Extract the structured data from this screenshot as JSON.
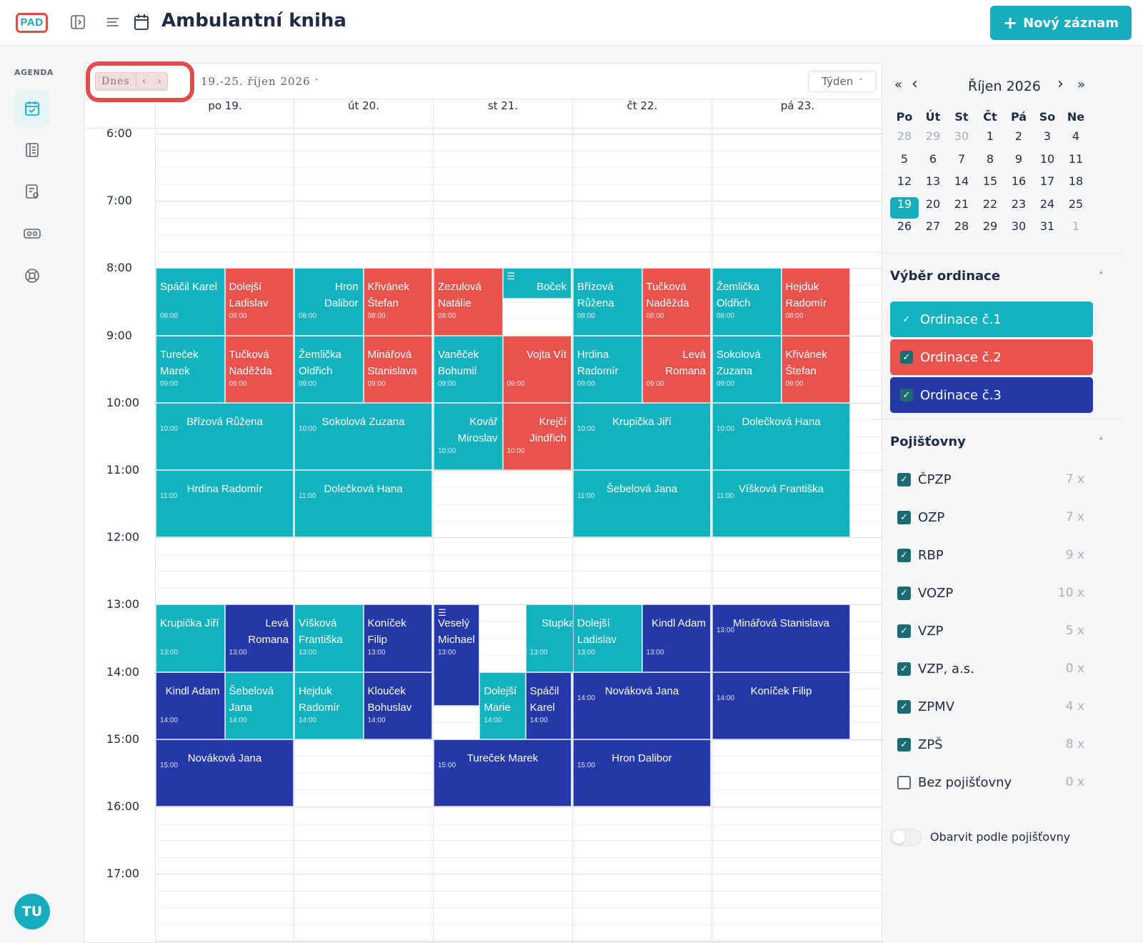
{
  "app": {
    "logo": "PAD",
    "title": "Ambulantní kniha",
    "new_button": "Nový záznam"
  },
  "sidebar": {
    "section": "AGENDA",
    "user_initials": "TU",
    "items": [
      {
        "icon": "calendar-check-icon",
        "active": true
      },
      {
        "icon": "book-icon",
        "active": false
      },
      {
        "icon": "clipboard-icon",
        "active": false
      },
      {
        "icon": "id-card-icon",
        "active": false
      },
      {
        "icon": "lifebuoy-icon",
        "active": false
      }
    ]
  },
  "calendar": {
    "today": "Dnes",
    "prev": "‹",
    "next": "›",
    "range": "19.-25. říjen 2026",
    "view": "Týden",
    "days": [
      "po 19.",
      "út 20.",
      "st 21.",
      "čt 22.",
      "pá 23."
    ],
    "hours": [
      "6:00",
      "7:00",
      "8:00",
      "9:00",
      "10:00",
      "11:00",
      "12:00",
      "13:00",
      "14:00",
      "15:00",
      "16:00",
      "17:00"
    ],
    "events": [
      {
        "day": 0,
        "sub": 0,
        "of": 2,
        "start": 8,
        "end": 9,
        "ord": 1,
        "name": "Spáčil Karel",
        "time": "08:00",
        "align": "l"
      },
      {
        "day": 0,
        "sub": 1,
        "of": 2,
        "start": 8,
        "end": 9,
        "ord": 2,
        "name": "Dolejší Ladislav",
        "time": "08:00",
        "align": "l"
      },
      {
        "day": 0,
        "sub": 0,
        "of": 2,
        "start": 9,
        "end": 10,
        "ord": 1,
        "name": "Tureček Marek",
        "time": "09:00",
        "align": "l"
      },
      {
        "day": 0,
        "sub": 1,
        "of": 2,
        "start": 9,
        "end": 10,
        "ord": 2,
        "name": "Tučková Naděžda",
        "time": "09:00",
        "align": "l"
      },
      {
        "day": 0,
        "sub": 0,
        "of": 1,
        "start": 10,
        "end": 11,
        "ord": 1,
        "name": "Břízová Růžena",
        "time": "10:00",
        "align": "c"
      },
      {
        "day": 0,
        "sub": 0,
        "of": 1,
        "start": 11,
        "end": 12,
        "ord": 1,
        "name": "Hrdina Radomír",
        "time": "11:00",
        "align": "c"
      },
      {
        "day": 0,
        "sub": 0,
        "of": 2,
        "start": 13,
        "end": 14,
        "ord": 1,
        "name": "Krupička Jiří",
        "time": "13:00",
        "align": "l"
      },
      {
        "day": 0,
        "sub": 1,
        "of": 2,
        "start": 13,
        "end": 14,
        "ord": 3,
        "name": "Levá Romana",
        "time": "13:00",
        "align": "r"
      },
      {
        "day": 0,
        "sub": 0,
        "of": 2,
        "start": 14,
        "end": 15,
        "ord": 3,
        "name": "Kindl Adam",
        "time": "14:00",
        "align": "r"
      },
      {
        "day": 0,
        "sub": 1,
        "of": 2,
        "start": 14,
        "end": 15,
        "ord": 1,
        "name": "Šebelová Jana",
        "time": "14:00",
        "align": "l"
      },
      {
        "day": 0,
        "sub": 0,
        "of": 1,
        "start": 15,
        "end": 16,
        "ord": 3,
        "name": "Nováková Jana",
        "time": "15:00",
        "align": "c"
      },
      {
        "day": 1,
        "sub": 0,
        "of": 2,
        "start": 8,
        "end": 9,
        "ord": 1,
        "name": "Hron Dalibor",
        "time": "08:00",
        "align": "r"
      },
      {
        "day": 1,
        "sub": 1,
        "of": 2,
        "start": 8,
        "end": 9,
        "ord": 2,
        "name": "Křivánek Štefan",
        "time": "08:00",
        "align": "l"
      },
      {
        "day": 1,
        "sub": 0,
        "of": 2,
        "start": 9,
        "end": 10,
        "ord": 1,
        "name": "Žemlička Oldřich",
        "time": "09:00",
        "align": "l"
      },
      {
        "day": 1,
        "sub": 1,
        "of": 2,
        "start": 9,
        "end": 10,
        "ord": 2,
        "name": "Minářová Stanislava",
        "time": "09:00",
        "align": "l"
      },
      {
        "day": 1,
        "sub": 0,
        "of": 1,
        "start": 10,
        "end": 11,
        "ord": 1,
        "name": "Sokolová Zuzana",
        "time": "10:00",
        "align": "c"
      },
      {
        "day": 1,
        "sub": 0,
        "of": 1,
        "start": 11,
        "end": 12,
        "ord": 1,
        "name": "Dolečková Hana",
        "time": "11:00",
        "align": "c"
      },
      {
        "day": 1,
        "sub": 0,
        "of": 2,
        "start": 13,
        "end": 14,
        "ord": 1,
        "name": "Víšková Františka",
        "time": "13:00",
        "align": "l"
      },
      {
        "day": 1,
        "sub": 1,
        "of": 2,
        "start": 13,
        "end": 14,
        "ord": 3,
        "name": "Koníček Filip",
        "time": "13:00",
        "align": "l"
      },
      {
        "day": 1,
        "sub": 0,
        "of": 2,
        "start": 14,
        "end": 15,
        "ord": 1,
        "name": "Hejduk Radomír",
        "time": "14:00",
        "align": "l"
      },
      {
        "day": 1,
        "sub": 1,
        "of": 2,
        "start": 14,
        "end": 15,
        "ord": 3,
        "name": "Klouček Bohuslav",
        "time": "14:00",
        "align": "l"
      },
      {
        "day": 2,
        "sub": 0,
        "of": 2,
        "start": 8,
        "end": 9,
        "ord": 2,
        "name": "Zezulová Natálie",
        "time": "08:00",
        "align": "l"
      },
      {
        "day": 2,
        "sub": 1,
        "of": 2,
        "start": 8,
        "end": 8.45,
        "ord": 1,
        "name": "Boček Rudolf",
        "time": "",
        "align": "r",
        "icon": true
      },
      {
        "day": 2,
        "sub": 0,
        "of": 2,
        "start": 9,
        "end": 10,
        "ord": 1,
        "name": "Vaněček Bohumil",
        "time": "09:00",
        "align": "l"
      },
      {
        "day": 2,
        "sub": 1,
        "of": 2,
        "start": 9,
        "end": 10,
        "ord": 2,
        "name": "Vojta Vít",
        "time": "09:00",
        "align": "r"
      },
      {
        "day": 2,
        "sub": 0,
        "of": 2,
        "start": 10,
        "end": 11,
        "ord": 1,
        "name": "Kovář Miroslav",
        "time": "10:00",
        "align": "r"
      },
      {
        "day": 2,
        "sub": 1,
        "of": 2,
        "start": 10,
        "end": 11,
        "ord": 2,
        "name": "Krejčí Jindřich",
        "time": "10:00",
        "align": "r"
      },
      {
        "day": 2,
        "sub": 0,
        "of": 3,
        "start": 13,
        "end": 14.5,
        "ord": 3,
        "name": "Veselý Michael",
        "time": "13:00",
        "align": "l",
        "icon": true
      },
      {
        "day": 2,
        "sub": 1,
        "of": 1.5,
        "start": 13,
        "end": 14,
        "ord": 1,
        "name": "Stupka Roman",
        "time": "13:00",
        "align": "r"
      },
      {
        "day": 2,
        "sub": 1,
        "of": 3,
        "start": 14,
        "end": 15,
        "ord": 1,
        "name": "Dolejší Marie",
        "time": "14:00",
        "align": "l"
      },
      {
        "day": 2,
        "sub": 2,
        "of": 3,
        "start": 14,
        "end": 15,
        "ord": 3,
        "name": "Spáčil Karel",
        "time": "14:00",
        "align": "l"
      },
      {
        "day": 2,
        "sub": 0,
        "of": 1,
        "start": 15,
        "end": 16,
        "ord": 3,
        "name": "Tureček Marek",
        "time": "15:00",
        "align": "c"
      },
      {
        "day": 3,
        "sub": 0,
        "of": 2,
        "start": 8,
        "end": 9,
        "ord": 1,
        "name": "Břízová Růžena",
        "time": "08:00",
        "align": "l"
      },
      {
        "day": 3,
        "sub": 1,
        "of": 2,
        "start": 8,
        "end": 9,
        "ord": 2,
        "name": "Tučková Naděžda",
        "time": "08:00",
        "align": "l"
      },
      {
        "day": 3,
        "sub": 0,
        "of": 2,
        "start": 9,
        "end": 10,
        "ord": 1,
        "name": "Hrdina Radomír",
        "time": "09:00",
        "align": "l"
      },
      {
        "day": 3,
        "sub": 1,
        "of": 2,
        "start": 9,
        "end": 10,
        "ord": 2,
        "name": "Levá Romana",
        "time": "09:00",
        "align": "r"
      },
      {
        "day": 3,
        "sub": 0,
        "of": 1,
        "start": 10,
        "end": 11,
        "ord": 1,
        "name": "Krupička Jiří",
        "time": "10:00",
        "align": "c"
      },
      {
        "day": 3,
        "sub": 0,
        "of": 1,
        "start": 11,
        "end": 12,
        "ord": 1,
        "name": "Šebelová Jana",
        "time": "11:00",
        "align": "c"
      },
      {
        "day": 3,
        "sub": 0,
        "of": 2,
        "start": 13,
        "end": 14,
        "ord": 1,
        "name": "Dolejší Ladislav",
        "time": "13:00",
        "align": "l"
      },
      {
        "day": 3,
        "sub": 1,
        "of": 2,
        "start": 13,
        "end": 14,
        "ord": 3,
        "name": "Kindl Adam",
        "time": "13:00",
        "align": "r"
      },
      {
        "day": 3,
        "sub": 0,
        "of": 1,
        "start": 14,
        "end": 15,
        "ord": 3,
        "name": "Nováková Jana",
        "time": "14:00",
        "align": "c"
      },
      {
        "day": 3,
        "sub": 0,
        "of": 1,
        "start": 15,
        "end": 16,
        "ord": 3,
        "name": "Hron Dalibor",
        "time": "15:00",
        "align": "c"
      },
      {
        "day": 4,
        "sub": 0,
        "of": 2,
        "start": 8,
        "end": 9,
        "ord": 1,
        "name": "Žemlička Oldřich",
        "time": "08:00",
        "align": "l"
      },
      {
        "day": 4,
        "sub": 1,
        "of": 2,
        "start": 8,
        "end": 9,
        "ord": 2,
        "name": "Hejduk Radomír",
        "time": "08:00",
        "align": "l"
      },
      {
        "day": 4,
        "sub": 0,
        "of": 2,
        "start": 9,
        "end": 10,
        "ord": 1,
        "name": "Sokolová Zuzana",
        "time": "09:00",
        "align": "l"
      },
      {
        "day": 4,
        "sub": 1,
        "of": 2,
        "start": 9,
        "end": 10,
        "ord": 2,
        "name": "Křivánek Štefan",
        "time": "09:00",
        "align": "l"
      },
      {
        "day": 4,
        "sub": 0,
        "of": 1,
        "start": 10,
        "end": 11,
        "ord": 1,
        "name": "Dolečková Hana",
        "time": "10:00",
        "align": "c"
      },
      {
        "day": 4,
        "sub": 0,
        "of": 1,
        "start": 11,
        "end": 12,
        "ord": 1,
        "name": "Víšková Františka",
        "time": "11:00",
        "align": "c"
      },
      {
        "day": 4,
        "sub": 0,
        "of": 1,
        "start": 13,
        "end": 14,
        "ord": 3,
        "name": "Minářová Stanislava",
        "time": "13:00",
        "align": "c"
      },
      {
        "day": 4,
        "sub": 0,
        "of": 1,
        "start": 14,
        "end": 15,
        "ord": 3,
        "name": "Koníček Filip",
        "time": "14:00",
        "align": "c"
      }
    ]
  },
  "mini_calendar": {
    "title": "Říjen 2026",
    "first": "«",
    "prev": "‹",
    "next": "›",
    "last": "»",
    "dow": [
      "Po",
      "Út",
      "St",
      "Čt",
      "Pá",
      "So",
      "Ne"
    ],
    "weeks": [
      [
        "28",
        "29",
        "30",
        "1",
        "2",
        "3",
        "4"
      ],
      [
        "5",
        "6",
        "7",
        "8",
        "9",
        "10",
        "11"
      ],
      [
        "12",
        "13",
        "14",
        "15",
        "16",
        "17",
        "18"
      ],
      [
        "19",
        "20",
        "21",
        "22",
        "23",
        "24",
        "25"
      ],
      [
        "26",
        "27",
        "28",
        "29",
        "30",
        "31",
        "1"
      ]
    ],
    "muted": [
      "0-0",
      "0-1",
      "0-2",
      "4-6"
    ],
    "selected": "3-0"
  },
  "offices": {
    "title": "Výběr ordinace",
    "chevron": "˄",
    "items": [
      {
        "label": "Ordinace č.1",
        "color": "#12b2bf",
        "check": "✓"
      },
      {
        "label": "Ordinace č.2",
        "color": "#e8534e",
        "check": "✓"
      },
      {
        "label": "Ordinace č.3",
        "color": "#2438a8",
        "check": "✓"
      }
    ]
  },
  "insurers": {
    "title": "Pojišťovny",
    "chevron": "˄",
    "items": [
      {
        "label": "ČPZP",
        "count": "7 x",
        "checked": true
      },
      {
        "label": "OZP",
        "count": "7 x",
        "checked": true
      },
      {
        "label": "RBP",
        "count": "9 x",
        "checked": true
      },
      {
        "label": "VOZP",
        "count": "10 x",
        "checked": true
      },
      {
        "label": "VZP",
        "count": "5 x",
        "checked": true
      },
      {
        "label": "VZP, a.s.",
        "count": "0 x",
        "checked": true
      },
      {
        "label": "ZPMV",
        "count": "4 x",
        "checked": true
      },
      {
        "label": "ZPŠ",
        "count": "8 x",
        "checked": true
      },
      {
        "label": "Bez pojišťovny",
        "count": "0 x",
        "checked": false
      }
    ],
    "toggle_label": "Obarvit podle pojišťovny",
    "toggle_on": false
  },
  "colors": {
    "ord1": "#12b2bf",
    "ord2": "#e8534e",
    "ord3": "#2438a8",
    "accent": "#17adbc"
  }
}
